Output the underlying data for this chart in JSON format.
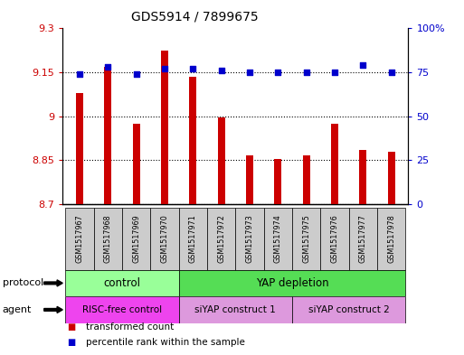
{
  "title": "GDS5914 / 7899675",
  "samples": [
    "GSM1517967",
    "GSM1517968",
    "GSM1517969",
    "GSM1517970",
    "GSM1517971",
    "GSM1517972",
    "GSM1517973",
    "GSM1517974",
    "GSM1517975",
    "GSM1517976",
    "GSM1517977",
    "GSM1517978"
  ],
  "transformed_counts": [
    9.08,
    9.17,
    8.975,
    9.225,
    9.135,
    8.995,
    8.865,
    8.855,
    8.865,
    8.975,
    8.885,
    8.88
  ],
  "percentile_ranks": [
    74,
    78,
    74,
    77,
    77,
    76,
    75,
    75,
    75,
    75,
    79,
    75
  ],
  "ylim_left": [
    8.7,
    9.3
  ],
  "ylim_right": [
    0,
    100
  ],
  "yticks_left": [
    8.7,
    8.85,
    9.0,
    9.15,
    9.3
  ],
  "yticks_right": [
    0,
    25,
    50,
    75,
    100
  ],
  "ytick_labels_left": [
    "8.7",
    "8.85",
    "9",
    "9.15",
    "9.3"
  ],
  "ytick_labels_right": [
    "0",
    "25",
    "50",
    "75",
    "100%"
  ],
  "bar_color": "#cc0000",
  "dot_color": "#0000cc",
  "bar_bottom": 8.7,
  "bar_width": 0.25,
  "protocol_colors": [
    "#99ff99",
    "#55dd55"
  ],
  "protocol_texts": [
    "control",
    "YAP depletion"
  ],
  "protocol_starts": [
    0,
    4
  ],
  "protocol_ends": [
    3,
    11
  ],
  "agent_colors": [
    "#ee44ee",
    "#dd99dd",
    "#dd99dd"
  ],
  "agent_texts": [
    "RISC-free control",
    "siYAP construct 1",
    "siYAP construct 2"
  ],
  "agent_starts": [
    0,
    4,
    8
  ],
  "agent_ends": [
    3,
    7,
    11
  ],
  "legend_items": [
    {
      "label": "transformed count",
      "color": "#cc0000"
    },
    {
      "label": "percentile rank within the sample",
      "color": "#0000cc"
    }
  ],
  "sample_box_color": "#cccccc",
  "left_tick_color": "#cc0000",
  "right_tick_color": "#0000cc",
  "grid_yticks": [
    8.7,
    8.85,
    9.0,
    9.15
  ]
}
